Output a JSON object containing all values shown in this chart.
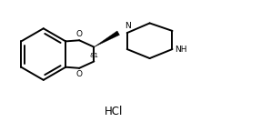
{
  "bg_color": "#ffffff",
  "line_color": "#000000",
  "line_width": 1.4,
  "text_color": "#000000",
  "hcl_text": "HCl",
  "stereo_label": "&1",
  "N_label": "N",
  "NH_label": "NH",
  "O_label1": "O",
  "O_label2": "O",
  "fig_width": 2.98,
  "fig_height": 1.34,
  "dpi": 100
}
